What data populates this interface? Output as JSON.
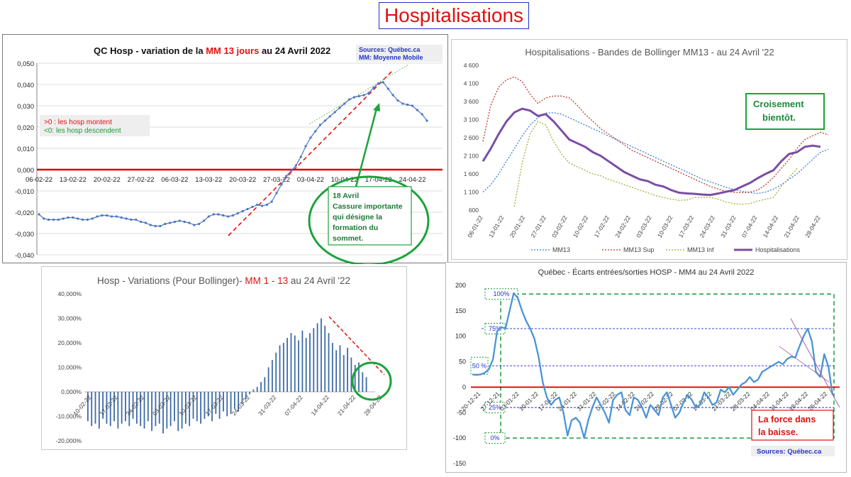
{
  "page_title": "Hospitalisations",
  "colors": {
    "title_red": "#e01010",
    "title_border": "#1f2fd0",
    "zero_line": "#e00000",
    "green": "#1aa33a",
    "mm13": "#3a7fd8",
    "sup": "#c0392b",
    "inf": "#a8ad38",
    "hosp": "#7a4ea5",
    "bars": "#3d6aa6",
    "ecarts": "#4b93d6"
  },
  "chart_data": [
    {
      "id": "chart1",
      "type": "line",
      "title_parts": [
        "QC  Hosp - variation de la ",
        "MM 13 jours",
        "  au 24 Avril 2022"
      ],
      "source": "Sources: Québec.ca",
      "source2": "MM: Moyenne Mobile",
      "legend_up": ">0 : les hosp montent",
      "legend_down": "<0: les hosp descendent",
      "annotation": [
        "18 Avril",
        "Cassure importante",
        "qui désigne la",
        "formation du",
        "sommet."
      ],
      "yticks": [
        "0,050",
        "0,040",
        "0,030",
        "0,020",
        "0,010",
        "0,000",
        "-0,010",
        "-0,020",
        "-0,030",
        "-0,040"
      ],
      "ylim": [
        -0.04,
        0.05
      ],
      "xticks": [
        "06-02-22",
        "13-02-22",
        "20-02-22",
        "27-02-22",
        "06-03-22",
        "13-03-22",
        "20-03-22",
        "27-03-22",
        "03-04-22",
        "10-04-22",
        "17-04-22",
        "24-04-22"
      ],
      "x_start_index": 0,
      "values": [
        -0.021,
        -0.023,
        -0.0235,
        -0.0235,
        -0.0235,
        -0.023,
        -0.0225,
        -0.0225,
        -0.023,
        -0.0235,
        -0.0235,
        -0.023,
        -0.022,
        -0.0215,
        -0.0215,
        -0.022,
        -0.022,
        -0.0225,
        -0.023,
        -0.0235,
        -0.0235,
        -0.0245,
        -0.025,
        -0.026,
        -0.0265,
        -0.0265,
        -0.0255,
        -0.025,
        -0.0245,
        -0.024,
        -0.0245,
        -0.025,
        -0.026,
        -0.0255,
        -0.024,
        -0.022,
        -0.021,
        -0.021,
        -0.0215,
        -0.022,
        -0.0215,
        -0.0205,
        -0.0195,
        -0.0185,
        -0.0175,
        -0.0165,
        -0.017,
        -0.0165,
        -0.015,
        -0.011,
        -0.007,
        -0.003,
        -0.0005,
        0.002,
        0.006,
        0.011,
        0.015,
        0.018,
        0.021,
        0.023,
        0.025,
        0.027,
        0.029,
        0.031,
        0.033,
        0.034,
        0.0345,
        0.035,
        0.036,
        0.0385,
        0.0405,
        0.041,
        0.038,
        0.035,
        0.0325,
        0.031,
        0.0305,
        0.03,
        0.028,
        0.026,
        0.023
      ]
    },
    {
      "id": "chart2",
      "type": "line",
      "title": "Hospitalisations - Bandes de Bollinger MM13 - au 24 Avril '22",
      "callout": [
        "Croisement",
        "bientôt."
      ],
      "yticks": [
        "4 600",
        "4 100",
        "3 600",
        "3 100",
        "2 600",
        "2 100",
        "1 600",
        "1 100",
        "600"
      ],
      "ylim": [
        600,
        4600
      ],
      "xticks": [
        "06-01-22",
        "13-01-22",
        "20-01-22",
        "27-01-22",
        "03-02-22",
        "10-02-22",
        "17-02-22",
        "24-02-22",
        "03-03-22",
        "10-03-22",
        "17-03-22",
        "24-03-22",
        "31-03-22",
        "07-04-22",
        "14-04-22",
        "21-04-22",
        "28-04-22"
      ],
      "series": [
        {
          "name": "MM13",
          "start": 0,
          "values": [
            1100,
            1300,
            1600,
            1950,
            2300,
            2650,
            2950,
            3150,
            3280,
            3290,
            3250,
            3150,
            3050,
            2950,
            2850,
            2750,
            2650,
            2550,
            2450,
            2350,
            2250,
            2150,
            2050,
            1950,
            1850,
            1750,
            1650,
            1550,
            1450,
            1380,
            1300,
            1230,
            1170,
            1120,
            1080,
            1060,
            1100,
            1180,
            1300,
            1450,
            1600,
            1800,
            2000,
            2200,
            2280
          ]
        },
        {
          "name": "MM13 Sup",
          "start": 0,
          "values": [
            2500,
            3500,
            4000,
            4200,
            4280,
            4150,
            3800,
            3550,
            3700,
            3750,
            3750,
            3700,
            3500,
            3250,
            3050,
            2850,
            2700,
            2550,
            2400,
            2250,
            2150,
            2050,
            1950,
            1850,
            1750,
            1650,
            1550,
            1450,
            1350,
            1250,
            1180,
            1120,
            1090,
            1080,
            1100,
            1150,
            1300,
            1500,
            1750,
            2000,
            2300,
            2550,
            2650,
            2750,
            2680
          ]
        },
        {
          "name": "MM13 Inf",
          "start": 4,
          "values": [
            700,
            1900,
            2700,
            3050,
            2950,
            2500,
            2150,
            1900,
            1800,
            1700,
            1600,
            1550,
            1450,
            1380,
            1300,
            1230,
            1150,
            1080,
            1000,
            950,
            900,
            870,
            880,
            950,
            950,
            950,
            900,
            820,
            780,
            760,
            780,
            850,
            900,
            950,
            1250,
            1500,
            1750
          ]
        },
        {
          "name": "Hospitalisations",
          "start": 0,
          "values": [
            1950,
            2300,
            2700,
            3050,
            3300,
            3400,
            3350,
            3200,
            3250,
            3050,
            2800,
            2550,
            2450,
            2350,
            2200,
            2100,
            1950,
            1800,
            1650,
            1550,
            1450,
            1400,
            1300,
            1250,
            1150,
            1080,
            1060,
            1050,
            1030,
            1020,
            1060,
            1110,
            1150,
            1250,
            1350,
            1480,
            1600,
            1700,
            1950,
            2150,
            2200,
            2350,
            2380,
            2350
          ]
        }
      ]
    },
    {
      "id": "chart3",
      "type": "bar",
      "title_parts": [
        "Hosp - Variations (Pour Bollinger)- ",
        "MM 1 - 13",
        " au 24 Avril '22"
      ],
      "yticks": [
        "40,000%",
        "30,000%",
        "20,000%",
        "10,000%",
        "0,000%",
        "-10,000%",
        "-20,000%"
      ],
      "ylim": [
        -20,
        40
      ],
      "xticks": [
        "10-02-22",
        "17-02-22",
        "24-02-22",
        "03-03-22",
        "10-03-22",
        "17-03-22",
        "24-03-22",
        "31-03-22",
        "07-04-22",
        "14-04-22",
        "21-04-22",
        "28-04-22"
      ],
      "values": [
        -12,
        -14,
        -13,
        -15,
        -11,
        -13,
        -14,
        -12,
        -15,
        -13,
        -12,
        -14,
        -11,
        -13,
        -14,
        -15,
        -12,
        -16,
        -14,
        -13,
        -17,
        -15,
        -14,
        -12,
        -16,
        -15,
        -13,
        -14,
        -11,
        -12,
        -13,
        -11,
        -10,
        -12,
        -9,
        -11,
        -8,
        -10,
        -9,
        -7,
        -8,
        -5,
        -3,
        -1,
        1,
        2,
        4,
        6,
        10,
        13,
        16,
        19,
        20,
        22,
        24,
        23,
        21,
        25,
        22,
        24,
        26,
        28,
        30,
        27,
        24,
        20,
        17,
        19,
        15,
        18,
        14,
        11,
        12,
        8,
        6
      ]
    },
    {
      "id": "chart4",
      "type": "line",
      "title": "Québec - Écarts entrées/sorties HOSP - MM4 au 24 Avril 2022",
      "callout": [
        "La force dans",
        "la baisse."
      ],
      "source": "Sources: Québec.ca",
      "band_labels": [
        "100%",
        "75%",
        "50 %",
        "25%",
        "0%"
      ],
      "yticks": [
        "200",
        "150",
        "100",
        "50",
        "0",
        "-50",
        "-100",
        "-150"
      ],
      "ylim": [
        -150,
        200
      ],
      "xticks": [
        "20-12-21",
        "27-12-21",
        "03-01-22",
        "10-01-22",
        "17-01-22",
        "24-01-22",
        "31-01-22",
        "07-02-22",
        "14-02-22",
        "21-02-22",
        "28-02-22",
        "07-03-22",
        "14-03-22",
        "21-03-22",
        "28-03-22",
        "04-04-22",
        "11-04-22",
        "18-04-22",
        "25-04-22"
      ],
      "values": [
        25,
        24,
        25,
        28,
        35,
        55,
        110,
        118,
        115,
        150,
        185,
        175,
        150,
        130,
        115,
        95,
        60,
        10,
        -20,
        -35,
        -25,
        -20,
        -50,
        -95,
        -65,
        -60,
        -70,
        -100,
        -65,
        -40,
        -20,
        -35,
        -50,
        -70,
        -25,
        -15,
        -10,
        -45,
        -55,
        -20,
        -25,
        -40,
        -60,
        -35,
        -45,
        -55,
        -20,
        -10,
        -35,
        -60,
        -50,
        -30,
        -15,
        -25,
        -40,
        -35,
        -10,
        -20,
        -35,
        -30,
        -5,
        -10,
        0,
        -15,
        -5,
        5,
        10,
        20,
        10,
        15,
        30,
        35,
        40,
        45,
        50,
        45,
        55,
        60,
        58,
        80,
        100,
        115,
        90,
        30,
        20,
        65,
        40,
        -15
      ]
    }
  ]
}
